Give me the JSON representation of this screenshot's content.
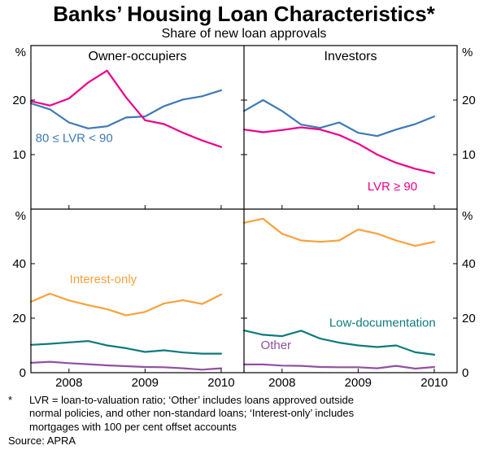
{
  "chart_data": {
    "type": "line",
    "title": "Banks’ Housing Loan Characteristics*",
    "subtitle": "Share of new loan approvals",
    "axis_color": "#000000",
    "x_label_ticks": [
      2008,
      2009,
      2010
    ],
    "x_range": [
      2007.5,
      2010.3
    ],
    "x": [
      2007.5,
      2007.75,
      2008,
      2008.25,
      2008.5,
      2008.75,
      2009,
      2009.25,
      2009.5,
      2009.75,
      2010
    ],
    "rows": [
      {
        "unit": "%",
        "ylim": [
          0,
          30
        ],
        "yticks": [
          10,
          20
        ],
        "panels": [
          {
            "title": "Owner-occupiers",
            "series": [
              {
                "name": "80 ≤ LVR < 90",
                "color": "#3e79b6",
                "values": [
                  19.4,
                  18.3,
                  15.9,
                  14.8,
                  15.2,
                  16.8,
                  17.0,
                  18.9,
                  20.1,
                  20.7,
                  21.8
                ],
                "label": {
                  "text": "80 ≤ LVR < 90",
                  "x": 2007.56,
                  "y": 12.3,
                  "anchor": "start"
                }
              },
              {
                "name": "LVR ≥ 90",
                "color": "#ec008c",
                "values": [
                  19.8,
                  19.0,
                  20.3,
                  23.2,
                  25.4,
                  20.5,
                  16.3,
                  15.6,
                  14.0,
                  12.6,
                  11.4
                ]
              }
            ]
          },
          {
            "title": "Investors",
            "series": [
              {
                "name": "80 ≤ LVR < 90",
                "color": "#3e79b6",
                "values": [
                  18.0,
                  20.0,
                  18.0,
                  15.5,
                  14.9,
                  15.9,
                  14.0,
                  13.4,
                  14.6,
                  15.6,
                  17.0
                ]
              },
              {
                "name": "LVR ≥ 90",
                "color": "#ec008c",
                "values": [
                  14.6,
                  14.1,
                  14.5,
                  15.0,
                  14.6,
                  13.6,
                  12.0,
                  10.0,
                  8.5,
                  7.4,
                  6.6
                ],
                "label": {
                  "text": "LVR ≥ 90",
                  "x": 2009.45,
                  "y": 3.4,
                  "anchor": "middle"
                }
              }
            ]
          }
        ]
      },
      {
        "unit": "%",
        "ylim": [
          0,
          60
        ],
        "yticks": [
          0,
          20,
          40
        ],
        "panels": [
          {
            "title": "",
            "series": [
              {
                "name": "Interest-only",
                "color": "#f9a13c",
                "values": [
                  26.0,
                  29.0,
                  26.5,
                  24.8,
                  23.3,
                  21.0,
                  22.3,
                  25.4,
                  26.6,
                  25.2,
                  28.7
                ],
                "label": {
                  "text": "Interest-only",
                  "x": 2008.45,
                  "y": 32.8,
                  "anchor": "middle"
                }
              },
              {
                "name": "Low-documentation",
                "color": "#0e7a7d",
                "values": [
                  10.2,
                  10.6,
                  11.1,
                  11.6,
                  10.0,
                  9.0,
                  7.6,
                  8.2,
                  7.4,
                  7.0,
                  7.0
                ]
              },
              {
                "name": "Other",
                "color": "#9151a0",
                "values": [
                  3.6,
                  4.0,
                  3.5,
                  3.1,
                  2.7,
                  2.4,
                  2.1,
                  2.0,
                  1.6,
                  1.1,
                  1.6
                ]
              }
            ]
          },
          {
            "title": "",
            "series": [
              {
                "name": "Interest-only",
                "color": "#f9a13c",
                "values": [
                  55.0,
                  56.5,
                  51.0,
                  48.5,
                  48.0,
                  48.5,
                  52.5,
                  51.0,
                  48.5,
                  46.5,
                  48.0
                ]
              },
              {
                "name": "Low-documentation",
                "color": "#0e7a7d",
                "values": [
                  15.5,
                  13.9,
                  13.4,
                  15.4,
                  12.5,
                  11.0,
                  10.0,
                  9.4,
                  10.0,
                  7.5,
                  6.6
                ],
                "label": {
                  "text": "Low-documentation",
                  "x": 2009.32,
                  "y": 16.8,
                  "anchor": "middle"
                }
              },
              {
                "name": "Other",
                "color": "#9151a0",
                "values": [
                  3.0,
                  3.0,
                  2.6,
                  2.5,
                  2.1,
                  2.0,
                  2.0,
                  1.6,
                  2.5,
                  1.5,
                  2.1
                ],
                "label": {
                  "text": "Other",
                  "x": 2007.92,
                  "y": 8.6,
                  "anchor": "middle"
                }
              }
            ]
          }
        ]
      }
    ],
    "footnote_marker": "*",
    "footnote_lines": [
      "LVR = loan-to-valuation ratio; ‘Other’ includes loans approved outside",
      "normal policies, and other non-standard loans; ‘Interest-only’ includes",
      "mortgages with 100 per cent offset accounts"
    ],
    "source": "Source: APRA"
  }
}
